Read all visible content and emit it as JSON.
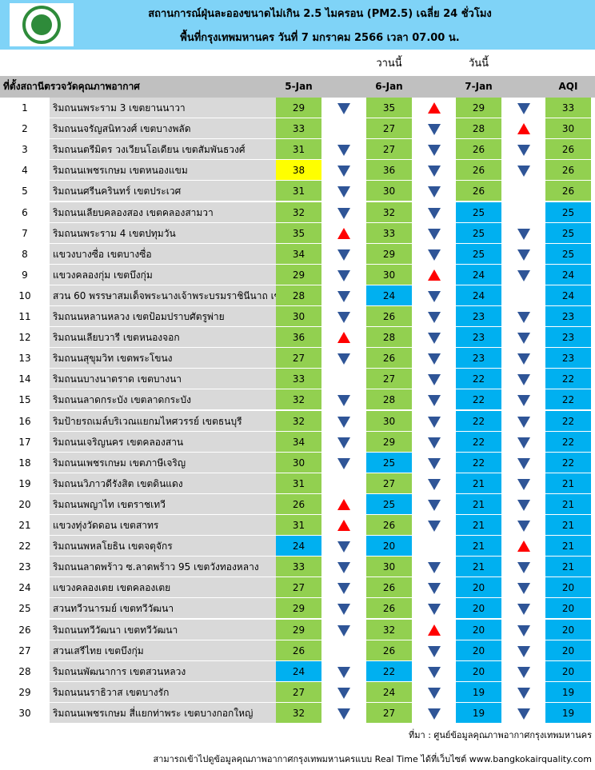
{
  "header": {
    "title_line1": "สถานการณ์ฝุ่นละอองขนาดไม่เกิน 2.5 ไมครอน (PM2.5) เฉลี่ย 24 ชั่วโมง",
    "title_line2": "พื้นที่กรุงเทพมหานคร วันที่ 7 มกราคม 2566 เวลา 07.00 น.",
    "yesterday": "วานนี้",
    "today": "วันนี้"
  },
  "table": {
    "columns": [
      "ที่ตั้งสถานีตรวจวัดคุณภาพอากาศ",
      "5-Jan",
      "6-Jan",
      "7-Jan",
      "AQI"
    ],
    "palette": {
      "g": "#92d050",
      "b": "#00b0f0",
      "y": "#ffff00"
    },
    "rows": [
      {
        "no": 1,
        "station": "ริมถนนพระราม 3 เขตยานนาวา",
        "values": [
          29,
          35,
          29,
          33
        ],
        "trends": [
          "down",
          "up",
          "down"
        ],
        "colors": [
          "g",
          "g",
          "g",
          "g"
        ]
      },
      {
        "no": 2,
        "station": "ริมถนนจรัญสนิทวงศ์ เขตบางพลัด",
        "values": [
          33,
          27,
          28,
          30
        ],
        "trends": [
          null,
          "down",
          "up"
        ],
        "colors": [
          "g",
          "g",
          "g",
          "g"
        ]
      },
      {
        "no": 3,
        "station": "ริมถนนตรีมิตร วงเวียนโอเดียน เขตสัมพันธวงศ์",
        "values": [
          31,
          27,
          26,
          26
        ],
        "trends": [
          "down",
          "down",
          "down"
        ],
        "colors": [
          "g",
          "g",
          "g",
          "g"
        ]
      },
      {
        "no": 4,
        "station": "ริมถนนเพชรเกษม เขตหนองแขม",
        "values": [
          38,
          36,
          26,
          26
        ],
        "trends": [
          "down",
          "down",
          "down"
        ],
        "colors": [
          "y",
          "g",
          "g",
          "g"
        ]
      },
      {
        "no": 5,
        "station": "ริมถนนศรีนครินทร์ เขตประเวศ",
        "values": [
          31,
          30,
          26,
          26
        ],
        "trends": [
          "down",
          "down",
          null
        ],
        "colors": [
          "g",
          "g",
          "g",
          "g"
        ]
      },
      {
        "no": 6,
        "station": "ริมถนนเลียบคลองสอง เขตคลองสามวา",
        "values": [
          32,
          32,
          25,
          25
        ],
        "trends": [
          "down",
          "down",
          null
        ],
        "colors": [
          "g",
          "g",
          "b",
          "b"
        ]
      },
      {
        "no": 7,
        "station": "ริมถนนพระราม 4 เขตปทุมวัน",
        "values": [
          35,
          33,
          25,
          25
        ],
        "trends": [
          "up",
          "down",
          "down"
        ],
        "colors": [
          "g",
          "g",
          "b",
          "b"
        ]
      },
      {
        "no": 8,
        "station": "แขวงบางซื่อ เขตบางซื่อ",
        "values": [
          34,
          29,
          25,
          25
        ],
        "trends": [
          "down",
          "down",
          "down"
        ],
        "colors": [
          "g",
          "g",
          "b",
          "b"
        ]
      },
      {
        "no": 9,
        "station": "แขวงคลองกุ่ม เขตบึงกุ่ม",
        "values": [
          29,
          30,
          24,
          24
        ],
        "trends": [
          "down",
          "up",
          "down"
        ],
        "colors": [
          "g",
          "g",
          "b",
          "b"
        ]
      },
      {
        "no": 10,
        "station": "สวน 60 พรรษาสมเด็จพระนางเจ้าพระบรมราชินีนาถ เขต",
        "values": [
          28,
          24,
          24,
          24
        ],
        "trends": [
          "down",
          "down",
          null
        ],
        "colors": [
          "g",
          "b",
          "b",
          "b"
        ]
      },
      {
        "no": 11,
        "station": "ริมถนนหลานหลวง เขตป้อมปราบศัตรูพ่าย",
        "values": [
          30,
          26,
          23,
          23
        ],
        "trends": [
          "down",
          "down",
          "down"
        ],
        "colors": [
          "g",
          "g",
          "b",
          "b"
        ]
      },
      {
        "no": 12,
        "station": "ริมถนนเลียบวารี เขตหนองจอก",
        "values": [
          36,
          28,
          23,
          23
        ],
        "trends": [
          "up",
          "down",
          "down"
        ],
        "colors": [
          "g",
          "g",
          "b",
          "b"
        ]
      },
      {
        "no": 13,
        "station": "ริมถนนสุขุมวิท เขตพระโขนง",
        "values": [
          27,
          26,
          23,
          23
        ],
        "trends": [
          "down",
          "down",
          "down"
        ],
        "colors": [
          "g",
          "g",
          "b",
          "b"
        ]
      },
      {
        "no": 14,
        "station": "ริมถนนบางนาตราด เขตบางนา",
        "values": [
          33,
          27,
          22,
          22
        ],
        "trends": [
          null,
          "down",
          "down"
        ],
        "colors": [
          "g",
          "g",
          "b",
          "b"
        ]
      },
      {
        "no": 15,
        "station": "ริมถนนลาดกระบัง เขตลาดกระบัง",
        "values": [
          32,
          28,
          22,
          22
        ],
        "trends": [
          "down",
          "down",
          "down"
        ],
        "colors": [
          "g",
          "g",
          "b",
          "b"
        ]
      },
      {
        "no": 16,
        "station": "ริมป้ายรถเมล์บริเวณแยกมไหศวรรย์ เขตธนบุรี",
        "values": [
          32,
          30,
          22,
          22
        ],
        "trends": [
          "down",
          "down",
          "down"
        ],
        "colors": [
          "g",
          "g",
          "b",
          "b"
        ]
      },
      {
        "no": 17,
        "station": "ริมถนนเจริญนคร เขตคลองสาน",
        "values": [
          34,
          29,
          22,
          22
        ],
        "trends": [
          "down",
          "down",
          "down"
        ],
        "colors": [
          "g",
          "g",
          "b",
          "b"
        ]
      },
      {
        "no": 18,
        "station": "ริมถนนเพชรเกษม เขตภาษีเจริญ",
        "values": [
          30,
          25,
          22,
          22
        ],
        "trends": [
          "down",
          "down",
          "down"
        ],
        "colors": [
          "g",
          "b",
          "b",
          "b"
        ]
      },
      {
        "no": 19,
        "station": "ริมถนนวิภาวดีรังสิต เขตดินแดง",
        "values": [
          31,
          27,
          21,
          21
        ],
        "trends": [
          null,
          "down",
          "down"
        ],
        "colors": [
          "g",
          "g",
          "b",
          "b"
        ]
      },
      {
        "no": 20,
        "station": "ริมถนนพญาไท เขตราชเทวี",
        "values": [
          26,
          25,
          21,
          21
        ],
        "trends": [
          "up",
          "down",
          "down"
        ],
        "colors": [
          "g",
          "b",
          "b",
          "b"
        ]
      },
      {
        "no": 21,
        "station": "แขวงทุ่งวัดดอน เขตสาทร",
        "values": [
          31,
          26,
          21,
          21
        ],
        "trends": [
          "up",
          "down",
          "down"
        ],
        "colors": [
          "g",
          "g",
          "b",
          "b"
        ]
      },
      {
        "no": 22,
        "station": "ริมถนนพหลโยธิน เขตจตุจักร",
        "values": [
          24,
          20,
          21,
          21
        ],
        "trends": [
          "down",
          null,
          "up"
        ],
        "colors": [
          "b",
          "b",
          "b",
          "b"
        ]
      },
      {
        "no": 23,
        "station": "ริมถนนลาดพร้าว ซ.ลาดพร้าว 95 เขตวังทองหลาง",
        "values": [
          33,
          30,
          21,
          21
        ],
        "trends": [
          "down",
          "down",
          "down"
        ],
        "colors": [
          "g",
          "g",
          "b",
          "b"
        ]
      },
      {
        "no": 24,
        "station": "แขวงคลองเตย เขตคลองเตย",
        "values": [
          27,
          26,
          20,
          20
        ],
        "trends": [
          "down",
          "down",
          "down"
        ],
        "colors": [
          "g",
          "g",
          "b",
          "b"
        ]
      },
      {
        "no": 25,
        "station": "สวนทวีวนารมย์ เขตทวีวัฒนา",
        "values": [
          29,
          26,
          20,
          20
        ],
        "trends": [
          "down",
          "down",
          "down"
        ],
        "colors": [
          "g",
          "g",
          "b",
          "b"
        ]
      },
      {
        "no": 26,
        "station": "ริมถนนทวีวัฒนา เขตทวีวัฒนา",
        "values": [
          29,
          32,
          20,
          20
        ],
        "trends": [
          "down",
          "up",
          "down"
        ],
        "colors": [
          "g",
          "g",
          "b",
          "b"
        ]
      },
      {
        "no": 27,
        "station": "สวนเสรีไทย  เขตบึงกุ่ม",
        "values": [
          26,
          26,
          20,
          20
        ],
        "trends": [
          null,
          "down",
          "down"
        ],
        "colors": [
          "g",
          "g",
          "b",
          "b"
        ]
      },
      {
        "no": 28,
        "station": "ริมถนนพัฒนาการ เขตสวนหลวง",
        "values": [
          24,
          22,
          20,
          20
        ],
        "trends": [
          "down",
          "down",
          "down"
        ],
        "colors": [
          "b",
          "b",
          "b",
          "b"
        ]
      },
      {
        "no": 29,
        "station": "ริมถนนนราธิวาส เขตบางรัก",
        "values": [
          27,
          24,
          19,
          19
        ],
        "trends": [
          "down",
          "down",
          "down"
        ],
        "colors": [
          "g",
          "g",
          "b",
          "b"
        ]
      },
      {
        "no": 30,
        "station": "ริมถนนเพชรเกษม สี่แยกท่าพระ เขตบางกอกใหญ่",
        "values": [
          32,
          27,
          19,
          19
        ],
        "trends": [
          "down",
          "down",
          "down"
        ],
        "colors": [
          "g",
          "g",
          "b",
          "b"
        ]
      }
    ]
  },
  "footer": {
    "source": "ที่มา : ศูนย์ข้อมูลคุณภาพอากาศกรุงเทพมหานคร",
    "website": "สามารถเข้าไปดูข้อมูลคุณภาพอากาศกรุงเทพมหานครแบบ Real Time ได้ที่เว็บไซต์ www.bangkokairquality.com"
  }
}
